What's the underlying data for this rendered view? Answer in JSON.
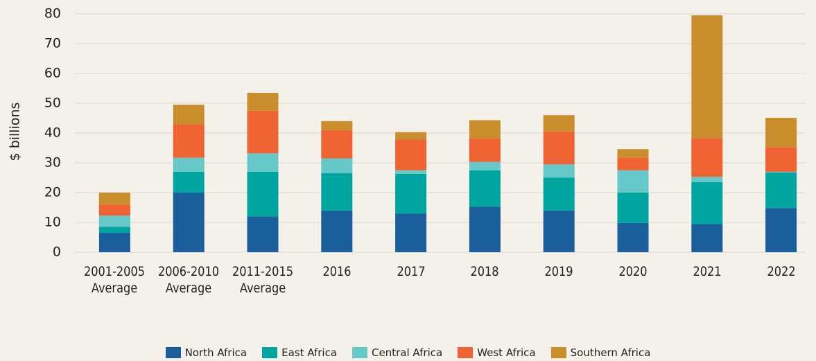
{
  "chart_data": {
    "type": "stacked_bar",
    "ylabel": "$ billions",
    "categories": [
      "2001-2005\nAverage",
      "2006-2010\nAverage",
      "2011-2015\nAverage",
      "2016",
      "2017",
      "2018",
      "2019",
      "2020",
      "2021",
      "2022"
    ],
    "series": [
      {
        "name": "North Africa",
        "color": "#1a5e9c",
        "values": [
          6.5,
          20,
          12,
          14,
          13,
          15.3,
          14,
          9.8,
          9.5,
          14.8
        ]
      },
      {
        "name": "East Africa",
        "color": "#00a5a0",
        "values": [
          2,
          7,
          15,
          12.5,
          13.3,
          12.2,
          11,
          10.2,
          14,
          12
        ]
      },
      {
        "name": "Central Africa",
        "color": "#66c8c8",
        "values": [
          3.8,
          4.7,
          6.2,
          5,
          1.2,
          2.8,
          4.5,
          7.5,
          1.8,
          0.2
        ]
      },
      {
        "name": "West Africa",
        "color": "#ee6331",
        "values": [
          3.7,
          11.3,
          14.3,
          9.5,
          10.3,
          7.9,
          11,
          4.2,
          13,
          8.3
        ]
      },
      {
        "name": "Southern Africa",
        "color": "#c98e2b",
        "values": [
          4,
          6.5,
          6,
          3,
          2.5,
          6.1,
          5.5,
          2.9,
          41.2,
          9.8
        ]
      }
    ],
    "ylim": [
      0,
      80
    ],
    "yticks": [
      0,
      10,
      20,
      30,
      40,
      50,
      60,
      70,
      80
    ],
    "grid": true,
    "legend": "bottom"
  }
}
